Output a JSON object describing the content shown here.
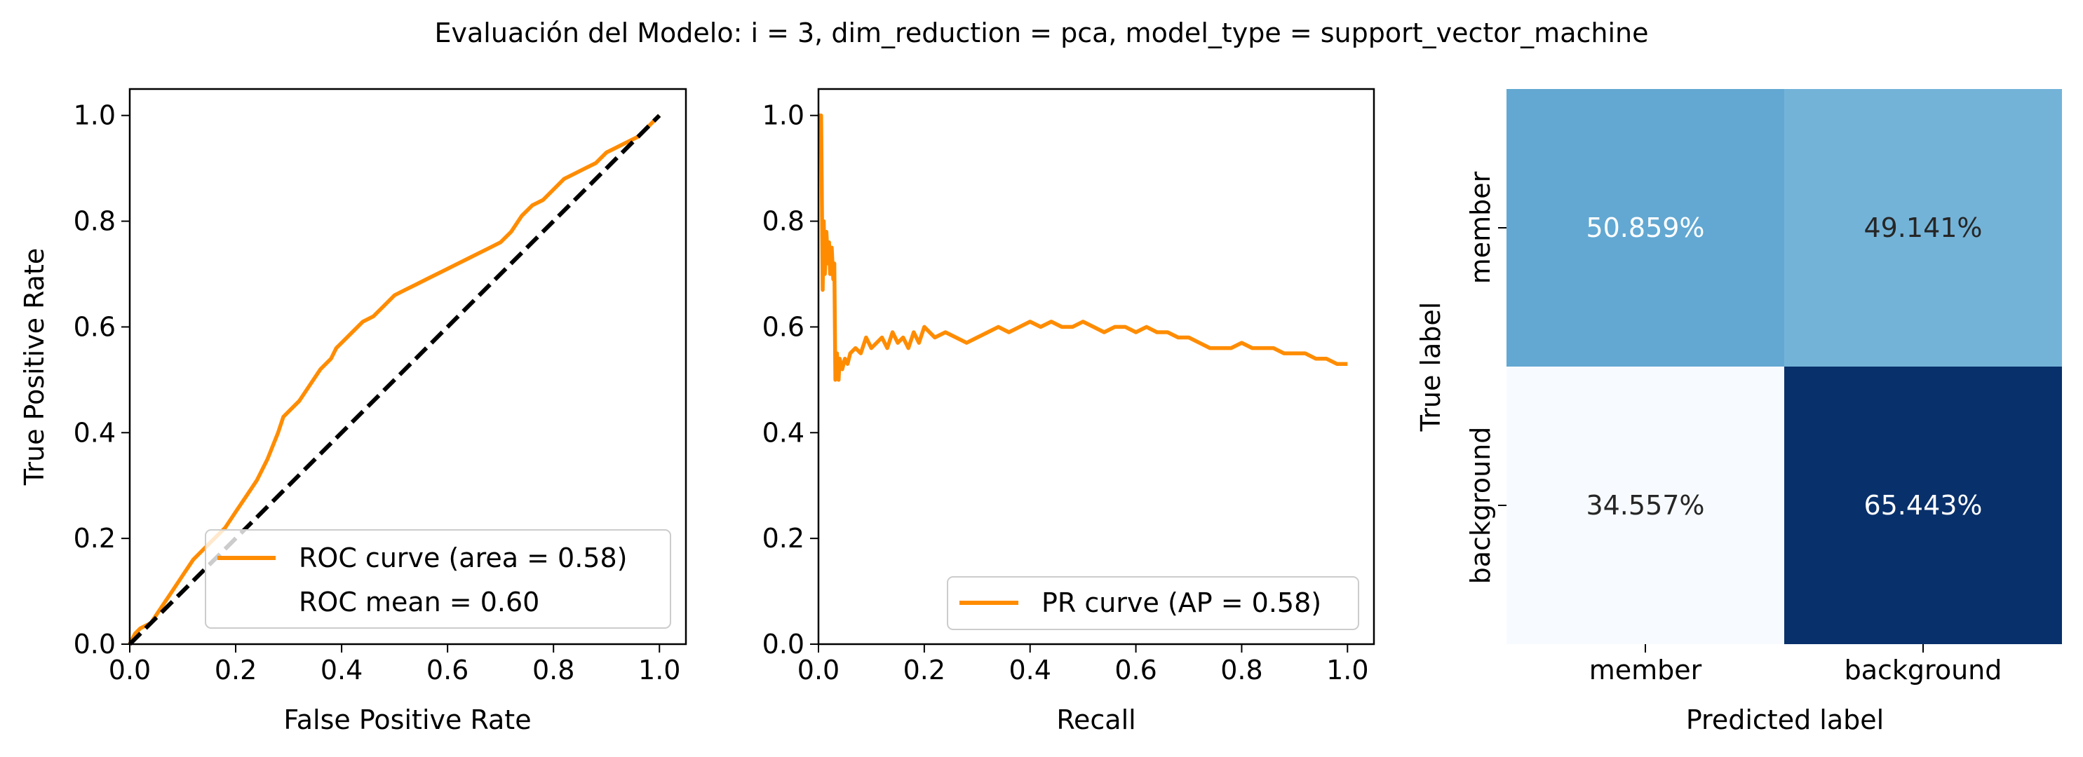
{
  "suptitle": "Evaluación del Modelo: i = 3, dim_reduction = pca, model_type = support_vector_machine",
  "colors": {
    "curve": "#ff8c00",
    "diagonal": "#000000",
    "axes": "#000000",
    "cm_text_dark": "#262626",
    "cm_text_light": "#ffffff"
  },
  "chart_data": [
    {
      "type": "line",
      "name": "roc",
      "xlabel": "False Positive Rate",
      "ylabel": "True Positive Rate",
      "xlim": [
        0.0,
        1.05
      ],
      "ylim": [
        0.0,
        1.05
      ],
      "xticks": [
        0.0,
        0.2,
        0.4,
        0.6,
        0.8,
        1.0
      ],
      "yticks": [
        0.0,
        0.2,
        0.4,
        0.6,
        0.8,
        1.0
      ],
      "xtick_labels": [
        "0.0",
        "0.2",
        "0.4",
        "0.6",
        "0.8",
        "1.0"
      ],
      "ytick_labels": [
        "0.0",
        "0.2",
        "0.4",
        "0.6",
        "0.8",
        "1.0"
      ],
      "grid": false,
      "legend_position": "lower-right",
      "legend": [
        {
          "label": "ROC curve (area = 0.58)",
          "line": true
        },
        {
          "label": "ROC mean = 0.60",
          "line": false
        }
      ],
      "series": [
        {
          "name": "ROC curve (area = 0.58)",
          "x": [
            0.0,
            0.01,
            0.02,
            0.04,
            0.06,
            0.08,
            0.1,
            0.12,
            0.14,
            0.16,
            0.18,
            0.2,
            0.22,
            0.24,
            0.26,
            0.28,
            0.29,
            0.3,
            0.32,
            0.34,
            0.36,
            0.38,
            0.39,
            0.4,
            0.42,
            0.44,
            0.46,
            0.48,
            0.5,
            0.52,
            0.54,
            0.56,
            0.58,
            0.6,
            0.62,
            0.64,
            0.66,
            0.68,
            0.7,
            0.72,
            0.74,
            0.76,
            0.78,
            0.8,
            0.82,
            0.84,
            0.86,
            0.88,
            0.9,
            0.92,
            0.94,
            0.96,
            0.98,
            1.0
          ],
          "y": [
            0.0,
            0.02,
            0.03,
            0.04,
            0.07,
            0.1,
            0.13,
            0.16,
            0.18,
            0.2,
            0.22,
            0.25,
            0.28,
            0.31,
            0.35,
            0.4,
            0.43,
            0.44,
            0.46,
            0.49,
            0.52,
            0.54,
            0.56,
            0.57,
            0.59,
            0.61,
            0.62,
            0.64,
            0.66,
            0.67,
            0.68,
            0.69,
            0.7,
            0.71,
            0.72,
            0.73,
            0.74,
            0.75,
            0.76,
            0.78,
            0.81,
            0.83,
            0.84,
            0.86,
            0.88,
            0.89,
            0.9,
            0.91,
            0.93,
            0.94,
            0.95,
            0.96,
            0.98,
            1.0
          ]
        },
        {
          "name": "diagonal",
          "x": [
            0.0,
            1.0
          ],
          "y": [
            0.0,
            1.0
          ],
          "dashed": true
        }
      ]
    },
    {
      "type": "line",
      "name": "pr",
      "xlabel": "Recall",
      "ylabel": "",
      "xlim": [
        0.0,
        1.05
      ],
      "ylim": [
        0.0,
        1.05
      ],
      "xticks": [
        0.0,
        0.2,
        0.4,
        0.6,
        0.8,
        1.0
      ],
      "yticks": [
        0.0,
        0.2,
        0.4,
        0.6,
        0.8,
        1.0
      ],
      "xtick_labels": [
        "0.0",
        "0.2",
        "0.4",
        "0.6",
        "0.8",
        "1.0"
      ],
      "ytick_labels": [
        "0.0",
        "0.2",
        "0.4",
        "0.6",
        "0.8",
        "1.0"
      ],
      "grid": false,
      "legend_position": "lower-right",
      "legend": [
        {
          "label": "PR curve (AP = 0.58)",
          "line": true
        }
      ],
      "series": [
        {
          "name": "PR curve (AP = 0.58)",
          "x": [
            0.0,
            0.005,
            0.008,
            0.01,
            0.012,
            0.015,
            0.018,
            0.02,
            0.022,
            0.025,
            0.028,
            0.03,
            0.032,
            0.035,
            0.038,
            0.04,
            0.045,
            0.05,
            0.055,
            0.06,
            0.07,
            0.08,
            0.09,
            0.1,
            0.11,
            0.12,
            0.13,
            0.14,
            0.15,
            0.16,
            0.17,
            0.18,
            0.19,
            0.2,
            0.22,
            0.24,
            0.26,
            0.28,
            0.3,
            0.32,
            0.34,
            0.36,
            0.38,
            0.4,
            0.42,
            0.44,
            0.46,
            0.48,
            0.5,
            0.52,
            0.54,
            0.56,
            0.58,
            0.6,
            0.62,
            0.64,
            0.66,
            0.68,
            0.7,
            0.72,
            0.74,
            0.76,
            0.78,
            0.8,
            0.82,
            0.84,
            0.86,
            0.88,
            0.9,
            0.92,
            0.94,
            0.96,
            0.98,
            1.0
          ],
          "y": [
            1.0,
            1.0,
            0.67,
            0.8,
            0.7,
            0.78,
            0.72,
            0.76,
            0.7,
            0.75,
            0.69,
            0.72,
            0.5,
            0.55,
            0.5,
            0.54,
            0.52,
            0.54,
            0.53,
            0.55,
            0.56,
            0.55,
            0.58,
            0.56,
            0.57,
            0.58,
            0.56,
            0.59,
            0.57,
            0.58,
            0.56,
            0.59,
            0.57,
            0.6,
            0.58,
            0.59,
            0.58,
            0.57,
            0.58,
            0.59,
            0.6,
            0.59,
            0.6,
            0.61,
            0.6,
            0.61,
            0.6,
            0.6,
            0.61,
            0.6,
            0.59,
            0.6,
            0.6,
            0.59,
            0.6,
            0.59,
            0.59,
            0.58,
            0.58,
            0.57,
            0.56,
            0.56,
            0.56,
            0.57,
            0.56,
            0.56,
            0.56,
            0.55,
            0.55,
            0.55,
            0.54,
            0.54,
            0.53,
            0.53
          ]
        }
      ]
    },
    {
      "type": "heatmap",
      "name": "confusion_matrix",
      "xlabel": "Predicted label",
      "ylabel": "True label",
      "x_categories": [
        "member",
        "background"
      ],
      "y_categories": [
        "member",
        "background"
      ],
      "values": [
        [
          50.859,
          49.141
        ],
        [
          34.557,
          65.443
        ]
      ],
      "labels": [
        [
          "50.859%",
          "49.141%"
        ],
        [
          "34.557%",
          "65.443%"
        ]
      ],
      "cell_colors": [
        [
          "#62a8d2",
          "#74b3d8"
        ],
        [
          "#f7fbff",
          "#08306b"
        ]
      ],
      "colormap": "Blues"
    }
  ]
}
